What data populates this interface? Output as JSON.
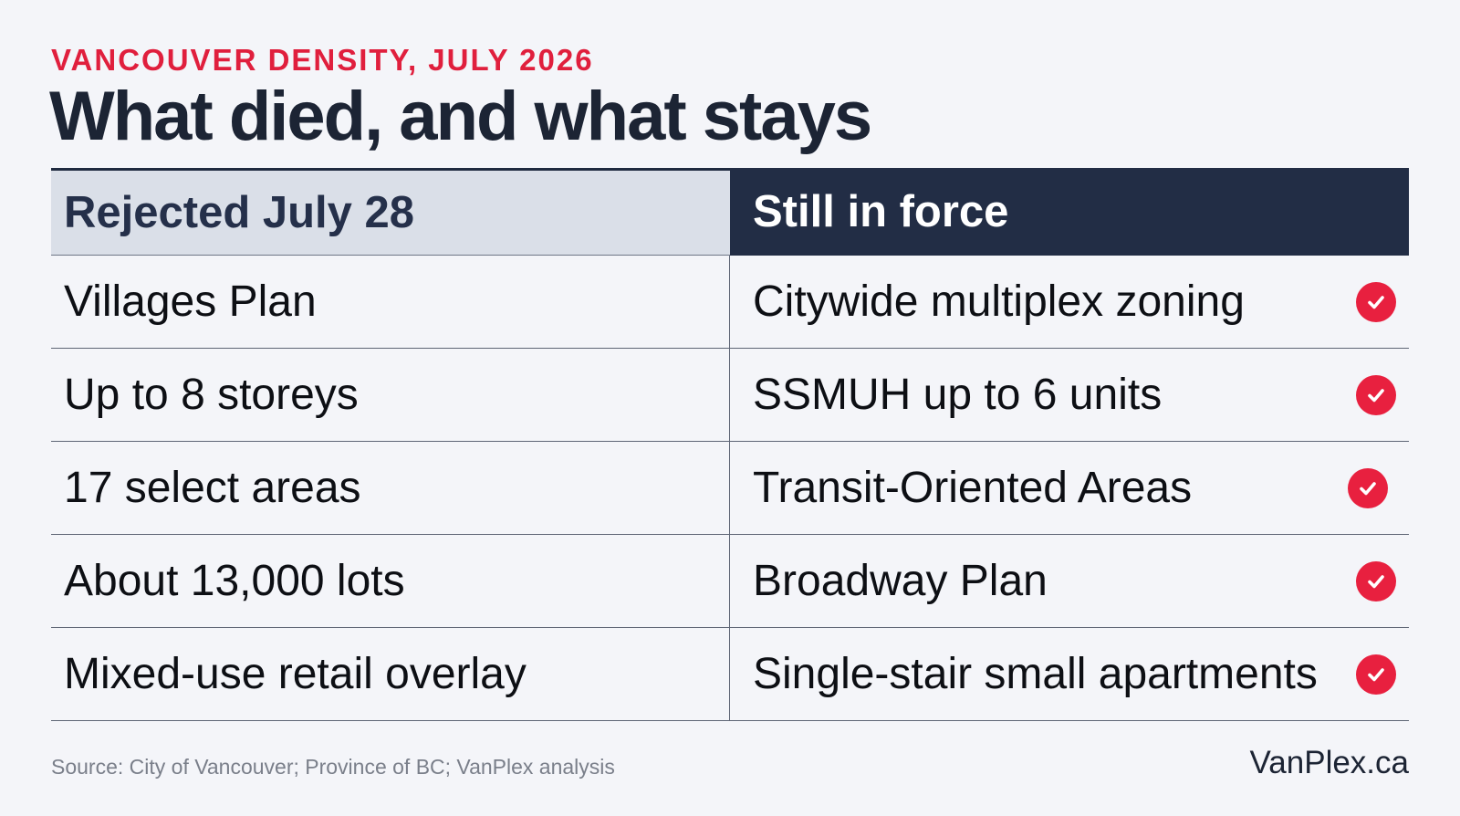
{
  "kicker": "VANCOUVER DENSITY, JULY 2026",
  "headline": "What died, and what stays",
  "table": {
    "headers": {
      "left": "Rejected July 28",
      "right": "Still in force"
    },
    "rows": [
      {
        "left": "Villages Plan",
        "right": "Citywide multiplex zoning",
        "status_icon": "check-circle-icon"
      },
      {
        "left": "Up to 8 storeys",
        "right": "SSMUH up to 6 units",
        "status_icon": "check-circle-icon"
      },
      {
        "left": "17 select areas",
        "right": "Transit-Oriented Areas",
        "status_icon": "check-circle-icon"
      },
      {
        "left": "About 13,000 lots",
        "right": "Broadway Plan",
        "status_icon": "check-circle-icon"
      },
      {
        "left": "Mixed-use retail overlay",
        "right": "Single-stair small apartments",
        "status_icon": "check-circle-icon"
      }
    ]
  },
  "footer": {
    "source": "Source: City of Vancouver; Province of BC; VanPlex analysis",
    "brand": "VanPlex.ca"
  },
  "colors": {
    "accent_red": "#e01f3d",
    "navy": "#222d45",
    "header_grey": "#dadfe8",
    "background": "#f4f5f9"
  }
}
